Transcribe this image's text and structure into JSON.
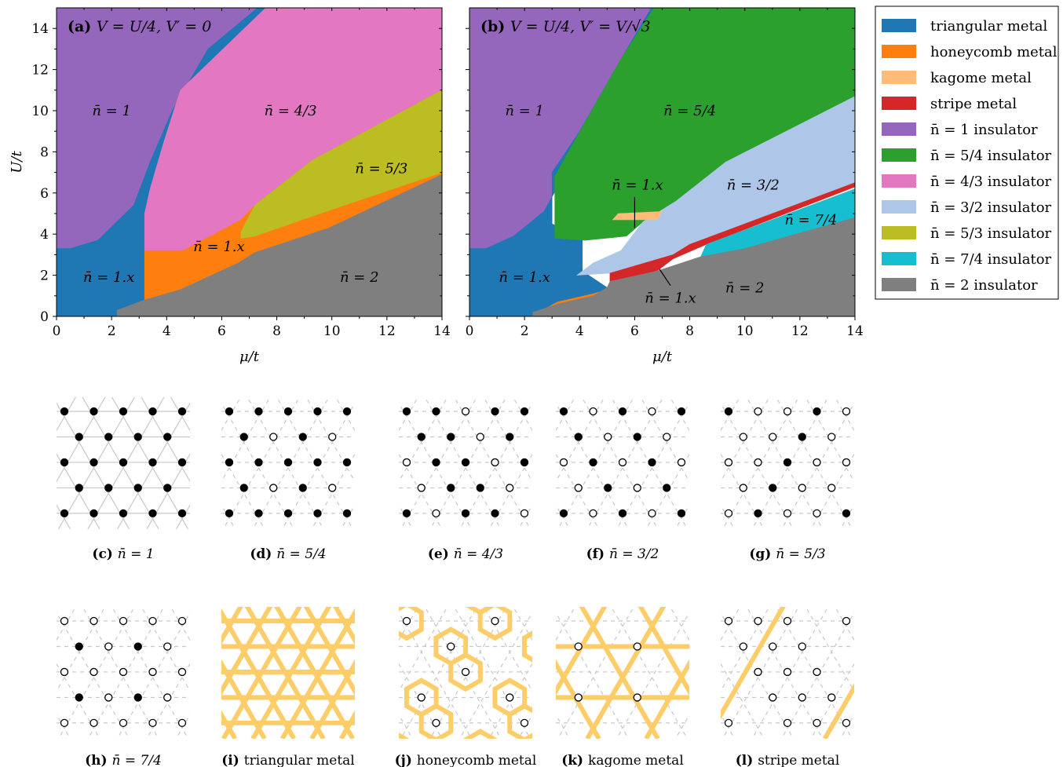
{
  "colors": {
    "triangular_metal": "#1f77b4",
    "honeycomb_metal": "#ff7f0e",
    "kagome_metal": "#ffbb78",
    "stripe_metal": "#d62728",
    "n1_ins": "#9467bd",
    "n54_ins": "#2ca02c",
    "n43_ins": "#e377c2",
    "n32_ins": "#aec7e8",
    "n53_ins": "#bcbd22",
    "n74_ins": "#17becf",
    "n2_ins": "#7f7f7f",
    "metal_stripe": "#fdcd6a"
  },
  "legend": [
    {
      "label": "triangular metal",
      "color_key": "triangular_metal"
    },
    {
      "label": "honeycomb metal",
      "color_key": "honeycomb_metal"
    },
    {
      "label": "kagome metal",
      "color_key": "kagome_metal"
    },
    {
      "label": "stripe metal",
      "color_key": "stripe_metal"
    },
    {
      "label": "n̄ = 1 insulator",
      "color_key": "n1_ins"
    },
    {
      "label": "n̄ = 5/4 insulator",
      "color_key": "n54_ins"
    },
    {
      "label": "n̄ = 4/3 insulator",
      "color_key": "n43_ins"
    },
    {
      "label": "n̄ = 3/2 insulator",
      "color_key": "n32_ins"
    },
    {
      "label": "n̄ = 5/3 insulator",
      "color_key": "n53_ins"
    },
    {
      "label": "n̄ = 7/4 insulator",
      "color_key": "n74_ins"
    },
    {
      "label": "n̄ = 2 insulator",
      "color_key": "n2_ins"
    }
  ],
  "chart_data": [
    {
      "type": "heatmap",
      "panel": "(a)",
      "title": "V = U/4, V′ = 0",
      "xlabel": "μ/t",
      "ylabel": "U/t",
      "xlim": [
        0,
        14
      ],
      "ylim": [
        0,
        15
      ],
      "xticks": [
        "0",
        "2",
        "4",
        "6",
        "8",
        "10",
        "12",
        "14"
      ],
      "yticks": [
        "0",
        "2",
        "4",
        "6",
        "8",
        "10",
        "12",
        "14"
      ],
      "regions": [
        {
          "phase": "n1_ins",
          "polygon": [
            [
              0,
              3.3
            ],
            [
              0.5,
              3.3
            ],
            [
              1.5,
              3.7
            ],
            [
              2.8,
              5.4
            ],
            [
              3.4,
              7.5
            ],
            [
              4.2,
              10
            ],
            [
              5.5,
              13
            ],
            [
              7.3,
              15
            ],
            [
              0,
              15
            ]
          ]
        },
        {
          "phase": "triangular_metal",
          "polygon": [
            [
              0,
              0
            ],
            [
              2.2,
              0
            ],
            [
              2.2,
              0.3
            ],
            [
              3.2,
              0.8
            ],
            [
              3.2,
              3.2
            ],
            [
              4.6,
              3.4
            ],
            [
              5.6,
              4.2
            ],
            [
              6.7,
              4.8
            ],
            [
              7.2,
              5.7
            ],
            [
              9.3,
              8
            ],
            [
              13.7,
              11
            ],
            [
              14,
              11
            ],
            [
              7.6,
              15
            ],
            [
              7.3,
              15
            ],
            [
              5.5,
              13
            ],
            [
              4.2,
              10
            ],
            [
              3.4,
              7.5
            ],
            [
              2.8,
              5.4
            ],
            [
              1.5,
              3.7
            ],
            [
              0.5,
              3.3
            ],
            [
              0,
              3.3
            ]
          ]
        },
        {
          "phase": "n43_ins",
          "polygon": [
            [
              3.2,
              3.2
            ],
            [
              4.6,
              3.2
            ],
            [
              5.6,
              3.9
            ],
            [
              6.7,
              4.7
            ],
            [
              7.2,
              5.4
            ],
            [
              9.3,
              7.6
            ],
            [
              14,
              11
            ],
            [
              14,
              15
            ],
            [
              7.6,
              15
            ],
            [
              4.5,
              11
            ],
            [
              3.9,
              8.5
            ],
            [
              3.4,
              6.2
            ],
            [
              3.2,
              5.0
            ]
          ]
        },
        {
          "phase": "honeycomb_metal",
          "polygon": [
            [
              3.2,
              0.8
            ],
            [
              4.5,
              1.3
            ],
            [
              6.6,
              2.6
            ],
            [
              7.2,
              3.1
            ],
            [
              9.9,
              4.3
            ],
            [
              14,
              6.9
            ],
            [
              14,
              11
            ],
            [
              9.3,
              7.6
            ],
            [
              7.2,
              5.4
            ],
            [
              6.7,
              4.7
            ],
            [
              5.6,
              3.9
            ],
            [
              4.6,
              3.2
            ],
            [
              3.2,
              3.2
            ]
          ]
        },
        {
          "phase": "n53_ins",
          "polygon": [
            [
              6.7,
              3.8
            ],
            [
              7.2,
              3.9
            ],
            [
              10,
              5.2
            ],
            [
              14,
              7.0
            ],
            [
              14,
              11
            ],
            [
              9.3,
              7.6
            ],
            [
              7.2,
              5.4
            ],
            [
              6.7,
              4.1
            ]
          ]
        },
        {
          "phase": "n2_ins",
          "polygon": [
            [
              2.2,
              0
            ],
            [
              14,
              0
            ],
            [
              14,
              6.9
            ],
            [
              9.9,
              4.3
            ],
            [
              7.2,
              3.1
            ],
            [
              6.6,
              2.6
            ],
            [
              4.5,
              1.3
            ],
            [
              3.2,
              0.8
            ],
            [
              2.2,
              0.3
            ]
          ]
        }
      ],
      "labels": [
        {
          "text": "n̄ = 1",
          "at": [
            2,
            10
          ]
        },
        {
          "text": "n̄ = 4/3",
          "at": [
            8.5,
            10
          ]
        },
        {
          "text": "n̄ = 5/3",
          "at": [
            11.8,
            7.2
          ]
        },
        {
          "text": "n̄ = 1.x",
          "at": [
            5.9,
            3.4
          ]
        },
        {
          "text": "n̄ = 1.x",
          "at": [
            1.9,
            1.9
          ]
        },
        {
          "text": "n̄ = 2",
          "at": [
            11,
            1.9
          ]
        }
      ]
    },
    {
      "type": "heatmap",
      "panel": "(b)",
      "title": "V = U/4, V′ = V/√3",
      "xlabel": "μ/t",
      "ylabel": "",
      "xlim": [
        0,
        14
      ],
      "ylim": [
        0,
        15
      ],
      "xticks": [
        "0",
        "2",
        "4",
        "6",
        "8",
        "10",
        "12",
        "14"
      ],
      "yticks": [],
      "regions": [
        {
          "phase": "n1_ins",
          "polygon": [
            [
              0,
              3.3
            ],
            [
              0.6,
              3.3
            ],
            [
              1.6,
              3.9
            ],
            [
              2.7,
              5.1
            ],
            [
              3.2,
              6.3
            ],
            [
              4.0,
              9
            ],
            [
              5.5,
              12.5
            ],
            [
              6.6,
              15
            ],
            [
              0,
              15
            ]
          ]
        },
        {
          "phase": "triangular_metal",
          "polygon": [
            [
              0,
              0
            ],
            [
              2.3,
              0
            ],
            [
              2.3,
              0.2
            ],
            [
              3.2,
              0.6
            ],
            [
              4.5,
              1.0
            ],
            [
              5.0,
              1.4
            ],
            [
              4.1,
              2.2
            ],
            [
              4.1,
              3.8
            ],
            [
              3.0,
              4.5
            ],
            [
              3.0,
              7.0
            ],
            [
              4.1,
              9.2
            ],
            [
              5.5,
              12.5
            ],
            [
              6.7,
              15
            ],
            [
              6.6,
              15
            ],
            [
              5.5,
              12.5
            ],
            [
              4.0,
              9
            ],
            [
              3.2,
              6.3
            ],
            [
              2.7,
              5.1
            ],
            [
              1.6,
              3.9
            ],
            [
              0.6,
              3.3
            ],
            [
              0,
              3.3
            ]
          ]
        },
        {
          "phase": "n54_ins",
          "polygon": [
            [
              3.1,
              3.8
            ],
            [
              4.2,
              3.7
            ],
            [
              5.7,
              3.9
            ],
            [
              6.3,
              4.6
            ],
            [
              7.5,
              5.6
            ],
            [
              9.3,
              7.5
            ],
            [
              14,
              10.7
            ],
            [
              14,
              15
            ],
            [
              6.7,
              15
            ],
            [
              5.5,
              12.5
            ],
            [
              4.1,
              9.2
            ],
            [
              3.1,
              6.8
            ]
          ]
        },
        {
          "phase": "n32_ins",
          "polygon": [
            [
              3.9,
              2.0
            ],
            [
              5.1,
              2.1
            ],
            [
              7.4,
              3.0
            ],
            [
              8.0,
              3.5
            ],
            [
              14,
              6.3
            ],
            [
              14,
              10.7
            ],
            [
              9.3,
              7.5
            ],
            [
              7.5,
              5.6
            ],
            [
              6.3,
              4.6
            ],
            [
              5.5,
              3.2
            ],
            [
              4.5,
              2.6
            ]
          ]
        },
        {
          "phase": "kagome_metal",
          "polygon": [
            [
              5.2,
              4.7
            ],
            [
              6.8,
              4.7
            ],
            [
              7.0,
              5.1
            ],
            [
              5.4,
              5.0
            ]
          ]
        },
        {
          "phase": "stripe_metal",
          "polygon": [
            [
              5.1,
              1.7
            ],
            [
              6.8,
              2.2
            ],
            [
              7.4,
              2.8
            ],
            [
              8.6,
              3.5
            ],
            [
              14,
              6.3
            ],
            [
              14,
              6.5
            ],
            [
              8.0,
              3.5
            ],
            [
              7.4,
              3.0
            ],
            [
              5.1,
              2.1
            ]
          ]
        },
        {
          "phase": "n74_ins",
          "polygon": [
            [
              8.4,
              2.9
            ],
            [
              10,
              3.3
            ],
            [
              14,
              4.8
            ],
            [
              14,
              6.2
            ],
            [
              8.6,
              3.5
            ]
          ]
        },
        {
          "phase": "honeycomb_metal",
          "polygon": [
            [
              2.5,
              0.2
            ],
            [
              3.2,
              0.6
            ],
            [
              4.5,
              1.0
            ],
            [
              5.0,
              1.3
            ],
            [
              4.5,
              1.1
            ],
            [
              3.2,
              0.7
            ]
          ]
        },
        {
          "phase": "n2_ins",
          "polygon": [
            [
              2.3,
              0
            ],
            [
              14,
              0
            ],
            [
              14,
              4.8
            ],
            [
              10,
              3.3
            ],
            [
              8.4,
              2.9
            ],
            [
              6.8,
              2.2
            ],
            [
              5.1,
              1.7
            ],
            [
              5.0,
              1.4
            ],
            [
              4.5,
              1.0
            ],
            [
              3.2,
              0.6
            ],
            [
              2.3,
              0.2
            ]
          ]
        }
      ],
      "labels": [
        {
          "text": "n̄ = 1",
          "at": [
            2,
            10
          ]
        },
        {
          "text": "n̄ = 5/4",
          "at": [
            8,
            10
          ]
        },
        {
          "text": "n̄ = 3/2",
          "at": [
            10.3,
            6.4
          ]
        },
        {
          "text": "n̄ = 7/4",
          "at": [
            12.4,
            4.7
          ]
        },
        {
          "text": "n̄ = 1.x",
          "at": [
            6.1,
            6.4
          ]
        },
        {
          "text": "n̄ = 1.x",
          "at": [
            2.0,
            1.9
          ]
        },
        {
          "text": "n̄ = 1.x",
          "at": [
            7.3,
            0.9
          ]
        },
        {
          "text": "n̄ = 2",
          "at": [
            10,
            1.4
          ]
        }
      ]
    }
  ],
  "panels": [
    {
      "tag": "(c)",
      "caption": "n̄ = 1",
      "kind": "fill",
      "pattern": "all"
    },
    {
      "tag": "(d)",
      "caption": "n̄ = 5/4",
      "kind": "fill",
      "pattern": "q54"
    },
    {
      "tag": "(e)",
      "caption": "n̄ = 4/3",
      "kind": "fill",
      "pattern": "q43"
    },
    {
      "tag": "(f)",
      "caption": "n̄ = 3/2",
      "kind": "fill",
      "pattern": "q32"
    },
    {
      "tag": "(g)",
      "caption": "n̄ = 5/3",
      "kind": "fill",
      "pattern": "q53"
    },
    {
      "tag": "(h)",
      "caption": "n̄ = 7/4",
      "kind": "fill",
      "pattern": "q74"
    },
    {
      "tag": "(i)",
      "caption": "triangular metal",
      "kind": "metal",
      "pattern": "triangular"
    },
    {
      "tag": "(j)",
      "caption": "honeycomb metal",
      "kind": "metal",
      "pattern": "honeycomb"
    },
    {
      "tag": "(k)",
      "caption": "kagome metal",
      "kind": "metal",
      "pattern": "kagome"
    },
    {
      "tag": "(l)",
      "caption": "stripe metal",
      "kind": "metal",
      "pattern": "stripe"
    }
  ]
}
